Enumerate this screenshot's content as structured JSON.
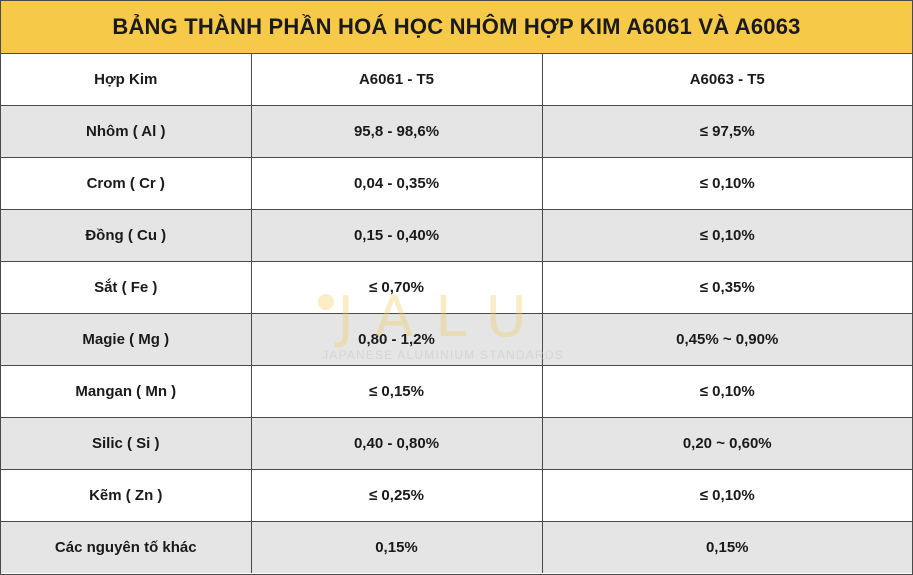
{
  "title": "BẢNG THÀNH PHẦN HOÁ HỌC NHÔM HỢP KIM A6061 VÀ A6063",
  "header": [
    "Hợp Kim",
    "A6061 - T5",
    "A6063 - T5"
  ],
  "rows": [
    [
      "Nhôm ( Al )",
      "95,8 - 98,6%",
      "≤ 97,5%"
    ],
    [
      "Crom ( Cr )",
      "0,04 - 0,35%",
      "≤ 0,10%"
    ],
    [
      "Đồng ( Cu )",
      "0,15 - 0,40%",
      "≤ 0,10%"
    ],
    [
      "Sắt ( Fe )",
      "≤ 0,70%",
      "≤ 0,35%"
    ],
    [
      "Magie ( Mg )",
      "0,80 - 1,2%",
      "0,45% ~ 0,90%"
    ],
    [
      "Mangan ( Mn )",
      "≤ 0,15%",
      "≤ 0,10%"
    ],
    [
      "Silic ( Si )",
      "0,40 - 0,80%",
      "0,20 ~ 0,60%"
    ],
    [
      "Kẽm ( Zn )",
      "≤ 0,25%",
      "≤ 0,10%"
    ],
    [
      "Các nguyên tố khác",
      "0,15%",
      "0,15%"
    ]
  ],
  "watermark": {
    "brand": "JALU",
    "tagline": "JAPANESE ALUMINIUM STANDARDS"
  },
  "colors": {
    "title_background": "#f7c948",
    "shaded_row": "#e5e5e5",
    "border": "#4a4a4a"
  }
}
